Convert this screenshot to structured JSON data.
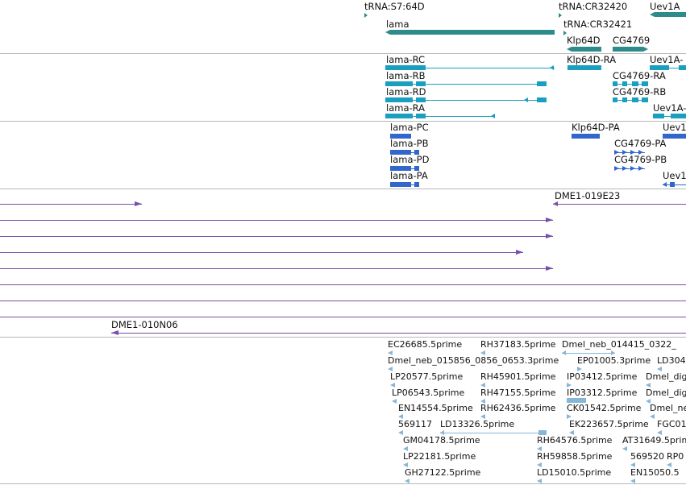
{
  "colors": {
    "teal": "#2f8a8a",
    "cyan": "#1a9fc0",
    "blue": "#3166cc",
    "purple": "#7a4fa8",
    "est": "#86b7d9",
    "divider": "#b8b8b8"
  },
  "tracks": {
    "genes": {
      "labels": [
        "tRNA:S7:64D",
        "tRNA:CR32420",
        "Uev1A",
        "lama",
        "tRNA:CR32421",
        "Klp64D",
        "CG4769"
      ]
    },
    "transcripts": {
      "labels": [
        "lama-RC",
        "Klp64D-RA",
        "Uev1A-",
        "lama-RB",
        "CG4769-RA",
        "lama-RD",
        "CG4769-RB",
        "lama-RA",
        "Uev1A-"
      ]
    },
    "proteins": {
      "labels": [
        "lama-PC",
        "Klp64D-PA",
        "Uev1",
        "lama-PB",
        "CG4769-PA",
        "lama-PD",
        "CG4769-PB",
        "lama-PA",
        "Uev1"
      ]
    },
    "bacs": {
      "labels": [
        "DME1-019E23",
        "DME1-010N06"
      ]
    },
    "ests": {
      "labels": [
        "EC26685.5prime",
        "RH37183.5prime",
        "Dmel_neb_014415_0322_",
        "Dmel_neb_015856_0856_0653.3prime",
        "EP01005.3prime",
        "LD304",
        "LP20577.5prime",
        "RH45901.5prime",
        "IP03412.5prime",
        "Dmel_dig",
        "LP06543.5prime",
        "RH47155.5prime",
        "IP03312.5prime",
        "Dmel_dig",
        "EN14554.5prime",
        "RH62436.5prime",
        "CK01542.5prime",
        "Dmel_ne",
        "569117",
        "LD13326.5prime",
        "EK223657.5prime",
        "FGC01",
        "GM04178.5prime",
        "RH64576.5prime",
        "AT31649.5prime",
        "LP22181.5prime",
        "RH59858.5prime",
        "569520",
        "RP0",
        "GH27122.5prime",
        "LD15010.5prime",
        "EN15050.5"
      ]
    }
  }
}
